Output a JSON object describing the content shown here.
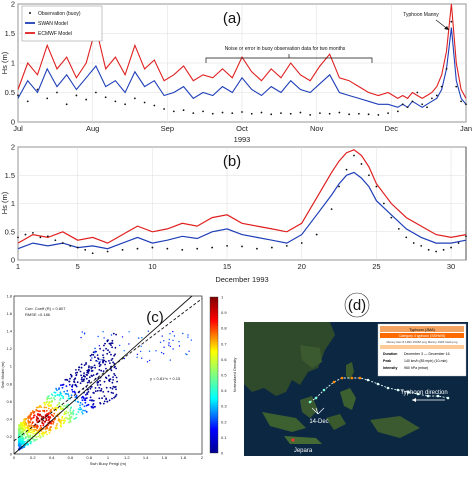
{
  "panels": {
    "a": "(a)",
    "b": "(b)",
    "c": "(c)",
    "d": "(d)"
  },
  "chart_data": [
    {
      "type": "line",
      "panel": "a",
      "ylabel": "Hs (m)",
      "xlabel": "1993",
      "ylim": [
        0,
        2
      ],
      "y_ticks": [
        "0",
        "0.5",
        "1",
        "1.5",
        "2"
      ],
      "x_ticks": [
        "Jul",
        "Aug",
        "Sep",
        "Oct",
        "Nov",
        "Dec",
        "Jan"
      ],
      "x_range_days": [
        0,
        184
      ],
      "legend": [
        "Observation (buoy)",
        "SWAN Model",
        "ECMWF Model"
      ],
      "legend_position": "top-left",
      "annotations": {
        "noise": "Noise or error in buoy observation data for two months",
        "typhoon": "Typhoon Manny"
      },
      "series": [
        {
          "name": "Observation (buoy)",
          "color": "#111111",
          "style": "dots",
          "x": [
            0,
            4,
            8,
            12,
            16,
            20,
            24,
            28,
            32,
            36,
            40,
            44,
            48,
            52,
            56,
            60,
            64,
            68,
            72,
            76,
            80,
            84,
            88,
            92,
            96,
            100,
            104,
            108,
            112,
            116,
            120,
            124,
            128,
            132,
            136,
            140,
            144,
            148,
            152,
            156,
            158,
            160,
            162,
            164,
            166,
            168,
            170,
            172,
            174,
            176,
            178,
            180,
            182,
            184
          ],
          "y": [
            0.45,
            0.35,
            0.55,
            0.4,
            0.5,
            0.3,
            0.45,
            0.38,
            0.5,
            0.42,
            0.35,
            0.3,
            0.4,
            0.33,
            0.28,
            0.22,
            0.18,
            0.2,
            0.15,
            0.18,
            0.14,
            0.16,
            0.15,
            0.17,
            0.14,
            0.16,
            0.13,
            0.15,
            0.14,
            0.16,
            0.12,
            0.15,
            0.14,
            0.16,
            0.13,
            0.14,
            0.13,
            0.12,
            0.15,
            0.18,
            0.3,
            0.25,
            0.35,
            0.5,
            0.3,
            0.25,
            0.4,
            0.45,
            0.6,
            0.9,
            1.7,
            0.6,
            0.35,
            0.3
          ]
        },
        {
          "name": "SWAN Model",
          "color": "#1f3fb8",
          "style": "line",
          "x": [
            0,
            4,
            8,
            12,
            16,
            20,
            24,
            28,
            32,
            36,
            40,
            44,
            48,
            52,
            56,
            60,
            64,
            68,
            72,
            76,
            80,
            84,
            88,
            92,
            96,
            100,
            104,
            108,
            112,
            116,
            120,
            124,
            128,
            132,
            136,
            140,
            144,
            148,
            152,
            156,
            158,
            160,
            162,
            164,
            166,
            168,
            170,
            172,
            174,
            176,
            178,
            180,
            182,
            184
          ],
          "y": [
            0.4,
            0.7,
            0.5,
            0.9,
            0.6,
            0.8,
            0.55,
            0.75,
            0.95,
            0.6,
            0.7,
            0.5,
            0.85,
            0.6,
            0.7,
            0.45,
            0.5,
            0.6,
            0.4,
            0.5,
            0.45,
            0.6,
            0.5,
            0.75,
            0.55,
            0.45,
            0.6,
            0.5,
            0.7,
            0.55,
            0.5,
            0.65,
            0.8,
            0.5,
            0.45,
            0.4,
            0.35,
            0.3,
            0.3,
            0.25,
            0.3,
            0.25,
            0.35,
            0.3,
            0.25,
            0.3,
            0.35,
            0.4,
            0.55,
            0.9,
            1.6,
            0.7,
            0.4,
            0.3
          ]
        },
        {
          "name": "ECMWF Model",
          "color": "#e02020",
          "style": "line",
          "x": [
            0,
            4,
            8,
            12,
            16,
            20,
            24,
            28,
            32,
            36,
            40,
            44,
            48,
            52,
            56,
            60,
            64,
            68,
            72,
            76,
            80,
            84,
            88,
            92,
            96,
            100,
            104,
            108,
            112,
            116,
            120,
            124,
            128,
            132,
            136,
            140,
            144,
            148,
            152,
            156,
            158,
            160,
            162,
            164,
            166,
            168,
            170,
            172,
            174,
            176,
            178,
            180,
            182,
            184
          ],
          "y": [
            0.55,
            1.0,
            0.8,
            1.3,
            0.9,
            1.1,
            0.75,
            1.0,
            1.6,
            0.9,
            1.1,
            0.8,
            1.3,
            0.9,
            1.05,
            0.7,
            0.8,
            0.95,
            0.7,
            0.8,
            0.75,
            0.9,
            0.75,
            1.1,
            0.85,
            0.7,
            0.9,
            0.75,
            1.0,
            0.8,
            0.7,
            0.95,
            1.15,
            0.75,
            0.7,
            0.6,
            0.5,
            0.45,
            0.5,
            0.4,
            0.45,
            0.4,
            0.5,
            0.45,
            0.4,
            0.45,
            0.5,
            0.6,
            0.8,
            1.2,
            2.0,
            1.0,
            0.55,
            0.4
          ]
        }
      ]
    },
    {
      "type": "line",
      "panel": "b",
      "ylabel": "Hs (m)",
      "xlabel": "December 1993",
      "ylim": [
        0,
        2
      ],
      "y_ticks": [
        "0",
        "0.5",
        "1",
        "1.5",
        "2"
      ],
      "x_ticks": [
        "1",
        "5",
        "10",
        "15",
        "20",
        "25",
        "30"
      ],
      "xlim": [
        1,
        31
      ],
      "series": [
        {
          "name": "Observation (buoy)",
          "color": "#111111",
          "style": "dots",
          "x": [
            1,
            1.5,
            2,
            2.5,
            3,
            3.5,
            4,
            4.5,
            5,
            5.5,
            6,
            7,
            8,
            9,
            10,
            11,
            12,
            13,
            14,
            15,
            16,
            17,
            18,
            19,
            20,
            21,
            22,
            22.5,
            23,
            23.5,
            24,
            24.5,
            25,
            25.5,
            26,
            26.5,
            27,
            27.5,
            28,
            28.5,
            29,
            29.5,
            30,
            30.5,
            31
          ],
          "y": [
            0.4,
            0.45,
            0.48,
            0.4,
            0.42,
            0.35,
            0.3,
            0.25,
            0.22,
            0.18,
            0.12,
            0.15,
            0.18,
            0.2,
            0.22,
            0.2,
            0.18,
            0.2,
            0.22,
            0.25,
            0.24,
            0.2,
            0.22,
            0.25,
            0.3,
            0.45,
            0.9,
            1.3,
            1.6,
            1.85,
            1.7,
            1.5,
            1.3,
            1.0,
            0.75,
            0.55,
            0.4,
            0.3,
            0.25,
            0.18,
            0.15,
            0.18,
            0.22,
            0.3,
            0.42
          ]
        },
        {
          "name": "SWAN Model",
          "color": "#1f3fb8",
          "style": "line",
          "x": [
            1,
            2,
            3,
            4,
            5,
            6,
            7,
            8,
            9,
            10,
            11,
            12,
            13,
            14,
            15,
            16,
            17,
            18,
            19,
            20,
            21,
            22,
            22.5,
            23,
            23.5,
            24,
            24.5,
            25,
            26,
            27,
            28,
            29,
            30,
            31
          ],
          "y": [
            0.2,
            0.3,
            0.25,
            0.3,
            0.22,
            0.25,
            0.2,
            0.3,
            0.4,
            0.3,
            0.35,
            0.42,
            0.38,
            0.5,
            0.55,
            0.45,
            0.4,
            0.35,
            0.3,
            0.45,
            0.8,
            1.15,
            1.35,
            1.5,
            1.55,
            1.45,
            1.3,
            1.05,
            0.8,
            0.55,
            0.4,
            0.3,
            0.3,
            0.35
          ]
        },
        {
          "name": "ECMWF Model",
          "color": "#e02020",
          "style": "line",
          "x": [
            1,
            2,
            3,
            4,
            5,
            6,
            7,
            8,
            9,
            10,
            11,
            12,
            13,
            14,
            15,
            16,
            17,
            18,
            19,
            20,
            21,
            22,
            22.5,
            23,
            23.5,
            24,
            24.5,
            25,
            26,
            27,
            28,
            29,
            30,
            31
          ],
          "y": [
            0.3,
            0.45,
            0.4,
            0.5,
            0.35,
            0.4,
            0.3,
            0.45,
            0.6,
            0.5,
            0.55,
            0.65,
            0.6,
            0.75,
            0.8,
            0.65,
            0.6,
            0.55,
            0.5,
            0.65,
            1.1,
            1.55,
            1.75,
            1.9,
            1.95,
            1.85,
            1.65,
            1.35,
            1.0,
            0.75,
            0.6,
            0.45,
            0.4,
            0.45
          ]
        }
      ]
    },
    {
      "type": "scatter",
      "panel": "c",
      "xlabel": "Swh Buoy Perigi (m)",
      "ylabel": "Swh Model (m)",
      "xlim": [
        0,
        2
      ],
      "ylim": [
        0,
        1.8
      ],
      "x_ticks": [
        "0",
        "0.2",
        "0.4",
        "0.6",
        "0.8",
        "1",
        "1.2",
        "1.4",
        "1.6",
        "1.8",
        "2"
      ],
      "y_ticks": [
        "0",
        "0.2",
        "0.4",
        "0.6",
        "0.8",
        "1",
        "1.2",
        "1.4",
        "1.6",
        "1.8"
      ],
      "stats": [
        "Corr. Coeff (R) = 0.807",
        "RMSE =0.186"
      ],
      "fit_label": "y = 0.81*x + 0.15",
      "colorbar_label": "Normalized Density",
      "colorbar_ticks": [
        "0",
        "0.1",
        "0.2",
        "0.3",
        "0.4",
        "0.5",
        "0.6",
        "0.7",
        "0.8",
        "0.9",
        "1"
      ]
    }
  ],
  "map": {
    "place_labels": [
      "Typhoon direction",
      "14-Dec",
      "Jepara"
    ],
    "info_box": {
      "title": "Typhoon (JMA)",
      "category": "Category 4 typhoon (SSHWS)",
      "caption": "Manny Dec 8 1993 1545Z.png Manny 1993 track.png",
      "rows": [
        {
          "key": "Duration",
          "value": "December 3 — December 16"
        },
        {
          "key": "Peak",
          "value": "140 km/h (85 mph) (10-min)"
        },
        {
          "key": "Intensity",
          "value": "960 hPa (mbar)"
        }
      ]
    }
  }
}
